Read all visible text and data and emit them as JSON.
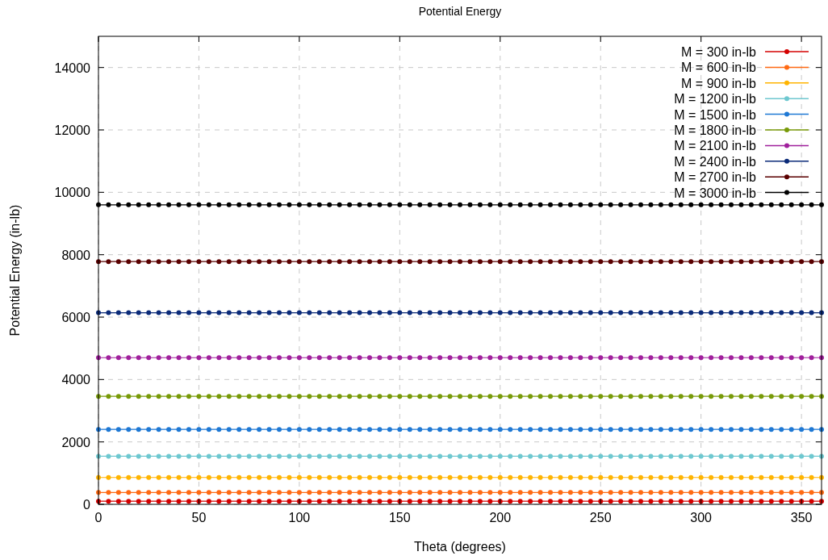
{
  "chart_data": {
    "type": "line",
    "title": "Potential Energy",
    "xlabel": "Theta (degrees)",
    "ylabel": "Potential Energy (in-lb)",
    "x": [
      0,
      5,
      10,
      15,
      20,
      25,
      30,
      35,
      40,
      45,
      50,
      55,
      60,
      65,
      70,
      75,
      80,
      85,
      90,
      95,
      100,
      105,
      110,
      115,
      120,
      125,
      130,
      135,
      140,
      145,
      150,
      155,
      160,
      165,
      170,
      175,
      180,
      185,
      190,
      195,
      200,
      205,
      210,
      215,
      220,
      225,
      230,
      235,
      240,
      245,
      250,
      255,
      260,
      265,
      270,
      275,
      280,
      285,
      290,
      295,
      300,
      305,
      310,
      315,
      320,
      325,
      330,
      335,
      340,
      345,
      350,
      355,
      360
    ],
    "xlim": [
      0,
      360
    ],
    "xticks": [
      0,
      50,
      100,
      150,
      200,
      250,
      300,
      350
    ],
    "ylim": [
      0,
      15000
    ],
    "yticks": [
      0,
      2000,
      4000,
      6000,
      8000,
      10000,
      12000,
      14000
    ],
    "grid": true,
    "legend": "top right",
    "marker": "circle",
    "line_style": "solid",
    "series": [
      {
        "name": "M = 300 in-lb",
        "color": "#d40000",
        "values": [
          100,
          100,
          100,
          100,
          100,
          100,
          100,
          100,
          100,
          100,
          100,
          100,
          100,
          100,
          100,
          100,
          100,
          100,
          100,
          100,
          100,
          100,
          100,
          100,
          100,
          100,
          100,
          100,
          100,
          100,
          100,
          100,
          100,
          100,
          100,
          100,
          100,
          100,
          100,
          100,
          100,
          100,
          100,
          100,
          100,
          100,
          100,
          100,
          100,
          100,
          100,
          100,
          100,
          100,
          100,
          100,
          100,
          100,
          100,
          100,
          100,
          100,
          100,
          100,
          100,
          100,
          100,
          100,
          100,
          100,
          100,
          100,
          100
        ]
      },
      {
        "name": "M = 600 in-lb",
        "color": "#ff6a13",
        "values": [
          380,
          380,
          380,
          380,
          380,
          380,
          380,
          380,
          380,
          380,
          380,
          380,
          380,
          380,
          380,
          380,
          380,
          380,
          380,
          380,
          380,
          380,
          380,
          380,
          380,
          380,
          380,
          380,
          380,
          380,
          380,
          380,
          380,
          380,
          380,
          380,
          380,
          380,
          380,
          380,
          380,
          380,
          380,
          380,
          380,
          380,
          380,
          380,
          380,
          380,
          380,
          380,
          380,
          380,
          380,
          380,
          380,
          380,
          380,
          380,
          380,
          380,
          380,
          380,
          380,
          380,
          380,
          380,
          380,
          380,
          380,
          380,
          380
        ]
      },
      {
        "name": "M = 900 in-lb",
        "color": "#ffb400",
        "values": [
          860,
          860,
          860,
          860,
          860,
          860,
          860,
          860,
          860,
          860,
          860,
          860,
          860,
          860,
          860,
          860,
          860,
          860,
          860,
          860,
          860,
          860,
          860,
          860,
          860,
          860,
          860,
          860,
          860,
          860,
          860,
          860,
          860,
          860,
          860,
          860,
          860,
          860,
          860,
          860,
          860,
          860,
          860,
          860,
          860,
          860,
          860,
          860,
          860,
          860,
          860,
          860,
          860,
          860,
          860,
          860,
          860,
          860,
          860,
          860,
          860,
          860,
          860,
          860,
          860,
          860,
          860,
          860,
          860,
          860,
          860,
          860,
          860
        ]
      },
      {
        "name": "M = 1200 in-lb",
        "color": "#6ec8d0",
        "values": [
          1540,
          1540,
          1540,
          1540,
          1540,
          1540,
          1540,
          1540,
          1540,
          1540,
          1540,
          1540,
          1540,
          1540,
          1540,
          1540,
          1540,
          1540,
          1540,
          1540,
          1540,
          1540,
          1540,
          1540,
          1540,
          1540,
          1540,
          1540,
          1540,
          1540,
          1540,
          1540,
          1540,
          1540,
          1540,
          1540,
          1540,
          1540,
          1540,
          1540,
          1540,
          1540,
          1540,
          1540,
          1540,
          1540,
          1540,
          1540,
          1540,
          1540,
          1540,
          1540,
          1540,
          1540,
          1540,
          1540,
          1540,
          1540,
          1540,
          1540,
          1540,
          1540,
          1540,
          1540,
          1540,
          1540,
          1540,
          1540,
          1540,
          1540,
          1540,
          1540,
          1540
        ]
      },
      {
        "name": "M = 1500 in-lb",
        "color": "#1e78d4",
        "values": [
          2400,
          2400,
          2400,
          2400,
          2400,
          2400,
          2400,
          2400,
          2400,
          2400,
          2400,
          2400,
          2400,
          2400,
          2400,
          2400,
          2400,
          2400,
          2400,
          2400,
          2400,
          2400,
          2400,
          2400,
          2400,
          2400,
          2400,
          2400,
          2400,
          2400,
          2400,
          2400,
          2400,
          2400,
          2400,
          2400,
          2400,
          2400,
          2400,
          2400,
          2400,
          2400,
          2400,
          2400,
          2400,
          2400,
          2400,
          2400,
          2400,
          2400,
          2400,
          2400,
          2400,
          2400,
          2400,
          2400,
          2400,
          2400,
          2400,
          2400,
          2400,
          2400,
          2400,
          2400,
          2400,
          2400,
          2400,
          2400,
          2400,
          2400,
          2400,
          2400,
          2400
        ]
      },
      {
        "name": "M = 1800 in-lb",
        "color": "#789a08",
        "values": [
          3460,
          3460,
          3460,
          3460,
          3460,
          3460,
          3460,
          3460,
          3460,
          3460,
          3460,
          3460,
          3460,
          3460,
          3460,
          3460,
          3460,
          3460,
          3460,
          3460,
          3460,
          3460,
          3460,
          3460,
          3460,
          3460,
          3460,
          3460,
          3460,
          3460,
          3460,
          3460,
          3460,
          3460,
          3460,
          3460,
          3460,
          3460,
          3460,
          3460,
          3460,
          3460,
          3460,
          3460,
          3460,
          3460,
          3460,
          3460,
          3460,
          3460,
          3460,
          3460,
          3460,
          3460,
          3460,
          3460,
          3460,
          3460,
          3460,
          3460,
          3460,
          3460,
          3460,
          3460,
          3460,
          3460,
          3460,
          3460,
          3460,
          3460,
          3460,
          3460,
          3460
        ]
      },
      {
        "name": "M = 2100 in-lb",
        "color": "#a0209c",
        "values": [
          4700,
          4700,
          4700,
          4700,
          4700,
          4700,
          4700,
          4700,
          4700,
          4700,
          4700,
          4700,
          4700,
          4700,
          4700,
          4700,
          4700,
          4700,
          4700,
          4700,
          4700,
          4700,
          4700,
          4700,
          4700,
          4700,
          4700,
          4700,
          4700,
          4700,
          4700,
          4700,
          4700,
          4700,
          4700,
          4700,
          4700,
          4700,
          4700,
          4700,
          4700,
          4700,
          4700,
          4700,
          4700,
          4700,
          4700,
          4700,
          4700,
          4700,
          4700,
          4700,
          4700,
          4700,
          4700,
          4700,
          4700,
          4700,
          4700,
          4700,
          4700,
          4700,
          4700,
          4700,
          4700,
          4700,
          4700,
          4700,
          4700,
          4700,
          4700,
          4700,
          4700
        ]
      },
      {
        "name": "M = 2400 in-lb",
        "color": "#0a2a78",
        "values": [
          6140,
          6140,
          6140,
          6140,
          6140,
          6140,
          6140,
          6140,
          6140,
          6140,
          6140,
          6140,
          6140,
          6140,
          6140,
          6140,
          6140,
          6140,
          6140,
          6140,
          6140,
          6140,
          6140,
          6140,
          6140,
          6140,
          6140,
          6140,
          6140,
          6140,
          6140,
          6140,
          6140,
          6140,
          6140,
          6140,
          6140,
          6140,
          6140,
          6140,
          6140,
          6140,
          6140,
          6140,
          6140,
          6140,
          6140,
          6140,
          6140,
          6140,
          6140,
          6140,
          6140,
          6140,
          6140,
          6140,
          6140,
          6140,
          6140,
          6140,
          6140,
          6140,
          6140,
          6140,
          6140,
          6140,
          6140,
          6140,
          6140,
          6140,
          6140,
          6140,
          6140
        ]
      },
      {
        "name": "M = 2700 in-lb",
        "color": "#5a0000",
        "values": [
          7780,
          7780,
          7780,
          7780,
          7780,
          7780,
          7780,
          7780,
          7780,
          7780,
          7780,
          7780,
          7780,
          7780,
          7780,
          7780,
          7780,
          7780,
          7780,
          7780,
          7780,
          7780,
          7780,
          7780,
          7780,
          7780,
          7780,
          7780,
          7780,
          7780,
          7780,
          7780,
          7780,
          7780,
          7780,
          7780,
          7780,
          7780,
          7780,
          7780,
          7780,
          7780,
          7780,
          7780,
          7780,
          7780,
          7780,
          7780,
          7780,
          7780,
          7780,
          7780,
          7780,
          7780,
          7780,
          7780,
          7780,
          7780,
          7780,
          7780,
          7780,
          7780,
          7780,
          7780,
          7780,
          7780,
          7780,
          7780,
          7780,
          7780,
          7780,
          7780,
          7780
        ]
      },
      {
        "name": "M = 3000 in-lb",
        "color": "#000000",
        "values": [
          9600,
          9600,
          9600,
          9600,
          9600,
          9600,
          9600,
          9600,
          9600,
          9600,
          9600,
          9600,
          9600,
          9600,
          9600,
          9600,
          9600,
          9600,
          9600,
          9600,
          9600,
          9600,
          9600,
          9600,
          9600,
          9600,
          9600,
          9600,
          9600,
          9600,
          9600,
          9600,
          9600,
          9600,
          9600,
          9600,
          9600,
          9600,
          9600,
          9600,
          9600,
          9600,
          9600,
          9600,
          9600,
          9600,
          9600,
          9600,
          9600,
          9600,
          9600,
          9600,
          9600,
          9600,
          9600,
          9600,
          9600,
          9600,
          9600,
          9600,
          9600,
          9600,
          9600,
          9600,
          9600,
          9600,
          9600,
          9600,
          9600,
          9600,
          9600,
          9600,
          9600
        ]
      }
    ]
  }
}
